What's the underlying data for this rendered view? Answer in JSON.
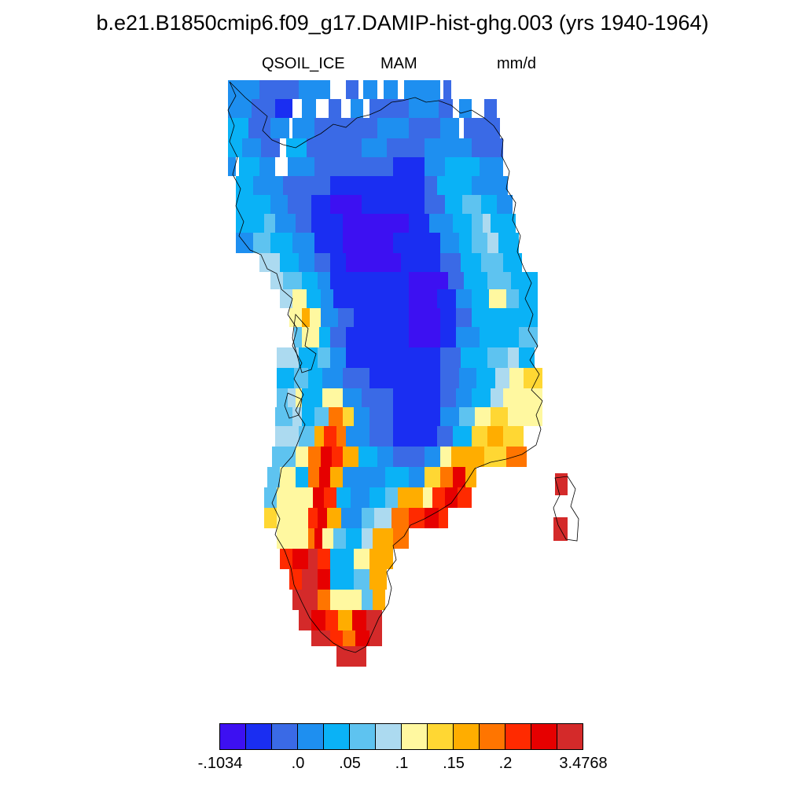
{
  "title": "b.e21.B1850cmip6.f09_g17.DAMIP-hist-ghg.003 (yrs 1940-1964)",
  "variable": "QSOIL_ICE",
  "season": "MAM",
  "units": "mm/d",
  "colorbar": {
    "colors": [
      "#3d10f2",
      "#1a2ef2",
      "#3a6ae6",
      "#1e8ff0",
      "#0ab2f6",
      "#5ec3f0",
      "#acdaf0",
      "#fff8a0",
      "#ffd733",
      "#ffad00",
      "#ff7500",
      "#ff2a00",
      "#e60000",
      "#d42a2a"
    ],
    "tick_labels": [
      "-.1034",
      ".0",
      ".05",
      ".1",
      ".15",
      ".2",
      "3.4768"
    ]
  }
}
